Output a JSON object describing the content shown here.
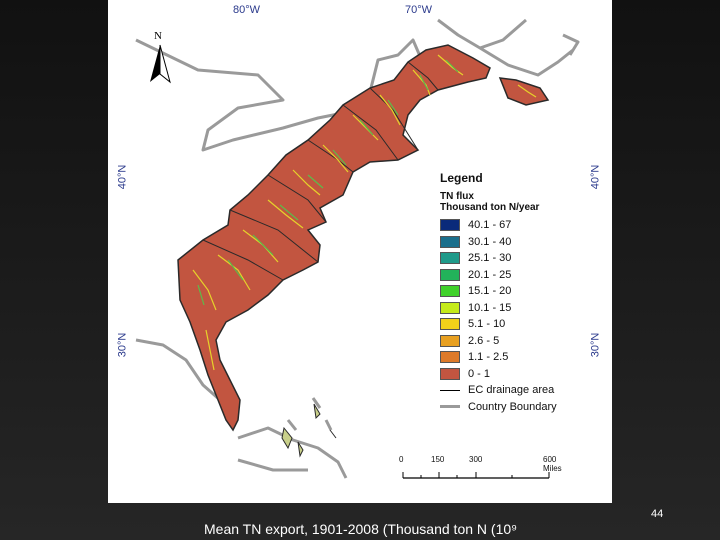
{
  "map": {
    "coord_labels": {
      "lon_top_left": "80°W",
      "lon_top_right": "70°W",
      "lat_40_left": "40°N",
      "lat_40_right": "40°N",
      "lat_30_left": "30°N",
      "lat_30_right": "30°N"
    },
    "north_arrow_letter": "N",
    "colors": {
      "region_fill": "#c25540",
      "region_border": "#2a2a2a",
      "country_boundary": "#9a9a9a",
      "stream_yellow": "#e6d22a",
      "stream_green": "#5dbb4a"
    }
  },
  "legend": {
    "title": "Legend",
    "subtitle_1": "TN flux",
    "subtitle_2": "Thousand ton N/year",
    "classes": [
      {
        "label": "40.1 - 67",
        "color": "#0a2a7a"
      },
      {
        "label": "30.1 - 40",
        "color": "#1b6f8c"
      },
      {
        "label": "25.1 - 30",
        "color": "#1f9a8a"
      },
      {
        "label": "20.1 - 25",
        "color": "#22b25a"
      },
      {
        "label": "15.1 - 20",
        "color": "#3fd12a"
      },
      {
        "label": "10.1 - 15",
        "color": "#c5ea1a"
      },
      {
        "label": "5.1 - 10",
        "color": "#f2d21a"
      },
      {
        "label": "2.6 - 5",
        "color": "#e8a020"
      },
      {
        "label": "1.1 - 2.5",
        "color": "#dd7a2a"
      },
      {
        "label": "0 - 1",
        "color": "#c25540"
      }
    ],
    "ec_drainage_label": "EC drainage area",
    "country_boundary_label": "Country Boundary"
  },
  "scale": {
    "ticks": [
      "0",
      "150",
      "300",
      "600 Miles"
    ]
  },
  "slide": {
    "page_number": "44",
    "caption": "Mean TN export, 1901-2008 (Thousand ton N (10⁹"
  }
}
